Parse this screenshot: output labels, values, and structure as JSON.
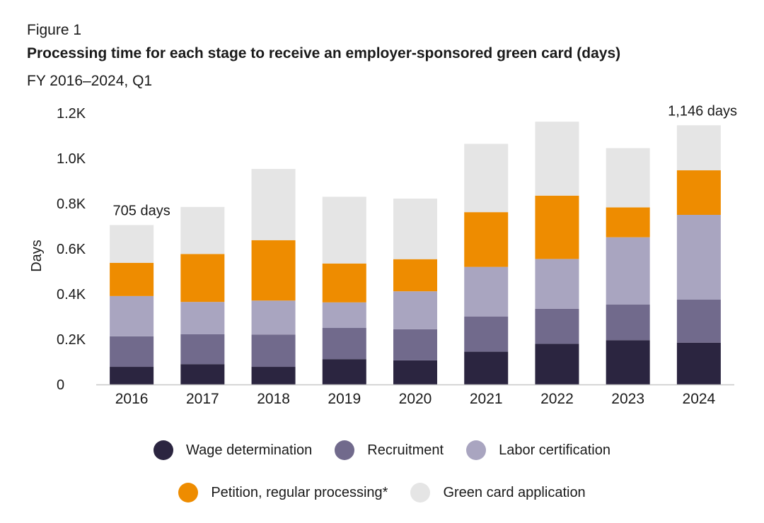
{
  "figure_label": "Figure 1",
  "chart_data": {
    "type": "bar",
    "stacked": true,
    "title": "Processing time for each stage to receive an employer-sponsored green card (days)",
    "subtitle": "FY 2016–2024, Q1",
    "ylabel": "Days",
    "xlabel": "",
    "ylim": [
      0,
      1200
    ],
    "yticks": [
      0,
      200,
      400,
      600,
      800,
      1000,
      1200
    ],
    "ytick_labels": [
      "0",
      "0.2K",
      "0.4K",
      "0.6K",
      "0.8K",
      "1.0K",
      "1.2K"
    ],
    "categories": [
      "2016",
      "2017",
      "2018",
      "2019",
      "2020",
      "2021",
      "2022",
      "2023",
      "2024"
    ],
    "series": [
      {
        "name": "Wage determination",
        "color": "#2b2540",
        "values": [
          78,
          90,
          78,
          112,
          107,
          145,
          180,
          196,
          185
        ]
      },
      {
        "name": "Recruitment",
        "color": "#716a8c",
        "values": [
          135,
          132,
          143,
          138,
          137,
          155,
          155,
          158,
          190
        ]
      },
      {
        "name": "Labor certification",
        "color": "#a9a5c0",
        "values": [
          178,
          143,
          150,
          113,
          168,
          220,
          220,
          297,
          375
        ]
      },
      {
        "name": "Petition, regular processing*",
        "color": "#ee8c00",
        "values": [
          147,
          212,
          267,
          172,
          142,
          242,
          280,
          132,
          197
        ]
      },
      {
        "name": "Green card application",
        "color": "#e5e5e5",
        "values": [
          167,
          208,
          315,
          295,
          268,
          302,
          327,
          262,
          199
        ]
      }
    ],
    "annotations": [
      {
        "category": "2016",
        "text": "705 days"
      },
      {
        "category": "2024",
        "text": "1,146 days"
      }
    ],
    "legend_position": "bottom"
  }
}
